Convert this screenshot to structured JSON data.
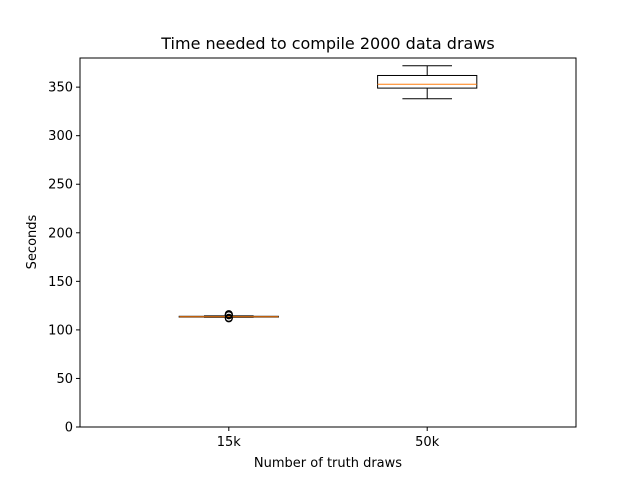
{
  "chart_data": {
    "type": "box",
    "title": "Time needed to compile 2000 data draws",
    "xlabel": "Number of truth draws",
    "ylabel": "Seconds",
    "categories": [
      "15k",
      "50k"
    ],
    "ylim": [
      0,
      380
    ],
    "yticks": [
      0,
      50,
      100,
      150,
      200,
      250,
      300,
      350
    ],
    "grid": false,
    "boxes": [
      {
        "category": "15k",
        "whislo": 113.0,
        "q1": 113.2,
        "med": 113.6,
        "q3": 114.0,
        "whishi": 114.4,
        "fliers": [
          111.8,
          112.2,
          112.5,
          115.0,
          115.4,
          115.9,
          116.3
        ]
      },
      {
        "category": "50k",
        "whislo": 338.0,
        "q1": 349.0,
        "med": 353.0,
        "q3": 362.0,
        "whishi": 372.0,
        "fliers": []
      }
    ],
    "colors": {
      "median": "#ff7f0e",
      "box": "#000000"
    }
  }
}
